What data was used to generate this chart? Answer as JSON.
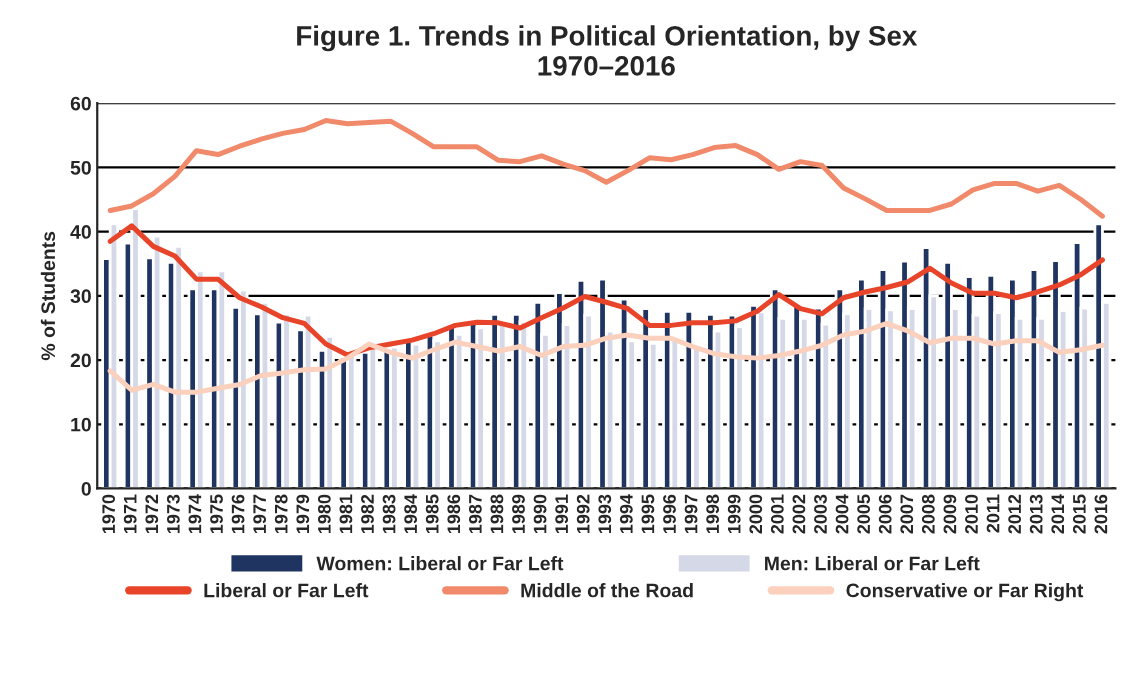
{
  "chart_data": {
    "type": "bar",
    "title": "Figure 1. Trends in Political Orientation, by Sex\n1970–2016",
    "ylabel": "% of Students",
    "categories": [
      "1970",
      "1971",
      "1972",
      "1973",
      "1974",
      "1975",
      "1976",
      "1977",
      "1978",
      "1979",
      "1980",
      "1981",
      "1982",
      "1983",
      "1984",
      "1985",
      "1986",
      "1987",
      "1988",
      "1989",
      "1990",
      "1991",
      "1992",
      "1993",
      "1994",
      "1995",
      "1996",
      "1997",
      "1998",
      "1999",
      "2000",
      "2001",
      "2002",
      "2003",
      "2004",
      "2005",
      "2006",
      "2007",
      "2008",
      "2009",
      "2010",
      "2011",
      "2012",
      "2013",
      "2014",
      "2015",
      "2016"
    ],
    "series": [
      {
        "name": "Women: Liberal or Far Left",
        "color": "#1f3461",
        "values": [
          35.8,
          38.2,
          35.9,
          35.2,
          31.1,
          31.1,
          28.2,
          27.2,
          25.9,
          24.7,
          21.5,
          20.5,
          21.2,
          21.9,
          23.2,
          23.9,
          25.4,
          25.7,
          27.1,
          27.1,
          29,
          30.5,
          32.4,
          32.6,
          29.5,
          28,
          27.6,
          27.6,
          27.1,
          27,
          28.5,
          31.1,
          28.7,
          28.1,
          31.1,
          32.6,
          34.1,
          35.4,
          37.5,
          35.2,
          33,
          33.2,
          32.6,
          34.1,
          35.5,
          38.3,
          41.2
        ]
      },
      {
        "name": "Men: Liberal or Far Left",
        "color": "#d5d8e6",
        "values": [
          41.2,
          43.6,
          39.3,
          37.7,
          33.9,
          33.9,
          30.9,
          29,
          27.2,
          27,
          23.7,
          21,
          22,
          22,
          22.5,
          23,
          24,
          25,
          26,
          26,
          24,
          25.5,
          27,
          24.5,
          23,
          22.6,
          23.5,
          22,
          24.5,
          25.2,
          27.5,
          26.5,
          26.5,
          25.6,
          27.2,
          28,
          27.8,
          28,
          30,
          28,
          27,
          27.4,
          26.5,
          26.5,
          27.7,
          28.1,
          29
        ]
      },
      {
        "name": "Liberal or Far Left",
        "type": "line",
        "color": "#e8442a",
        "values": [
          38.5,
          40.9,
          37.7,
          36.2,
          32.6,
          32.6,
          29.7,
          28.3,
          26.6,
          25.7,
          22.5,
          20.8,
          21.9,
          22.5,
          23.1,
          24.1,
          25.4,
          25.9,
          25.8,
          25,
          26.6,
          28.1,
          29.9,
          29,
          28,
          25.4,
          25.4,
          25.8,
          25.8,
          26.1,
          27.6,
          30.2,
          28,
          27.2,
          29.7,
          30.6,
          31.3,
          32.2,
          34.3,
          32,
          30.4,
          30.4,
          29.7,
          30.6,
          31.7,
          33.3,
          35.6
        ]
      },
      {
        "name": "Middle of the Road",
        "type": "line",
        "color": "#f08a6a",
        "values": [
          43.3,
          44,
          45.9,
          48.6,
          52.6,
          52,
          53.3,
          54.4,
          55.3,
          55.9,
          57.3,
          56.8,
          57,
          57.2,
          55.3,
          53.2,
          53.2,
          53.2,
          51.1,
          50.9,
          51.8,
          50.5,
          49.5,
          47.7,
          49.5,
          51.5,
          51.2,
          52,
          53.1,
          53.4,
          52,
          49.7,
          50.9,
          50.3,
          46.8,
          45.1,
          43.3,
          43.3,
          43.3,
          44.3,
          46.5,
          47.5,
          47.5,
          46.3,
          47.2,
          45,
          42.4
        ]
      },
      {
        "name": "Conservative or Far Right",
        "type": "line",
        "color": "#fbd0bc",
        "values": [
          18.3,
          15.3,
          16.2,
          15,
          15,
          15.6,
          16.2,
          17.6,
          18,
          18.5,
          18.6,
          20.3,
          22.5,
          21.2,
          20.3,
          21.6,
          22.8,
          22.1,
          21.4,
          22.1,
          20.7,
          22.1,
          22.3,
          23.4,
          23.9,
          23.4,
          23.4,
          22.1,
          21,
          20.5,
          20.3,
          20.7,
          21.4,
          22.3,
          23.9,
          24.5,
          25.7,
          24.5,
          22.7,
          23.4,
          23.4,
          22.5,
          23,
          23,
          21.2,
          21.6,
          22.3
        ]
      }
    ],
    "ylim": [
      0,
      60
    ],
    "yticks": [
      0,
      10,
      20,
      30,
      40,
      50,
      60
    ],
    "grid": "y",
    "legend": "bottom",
    "line_style": "solid",
    "marker": "none"
  }
}
